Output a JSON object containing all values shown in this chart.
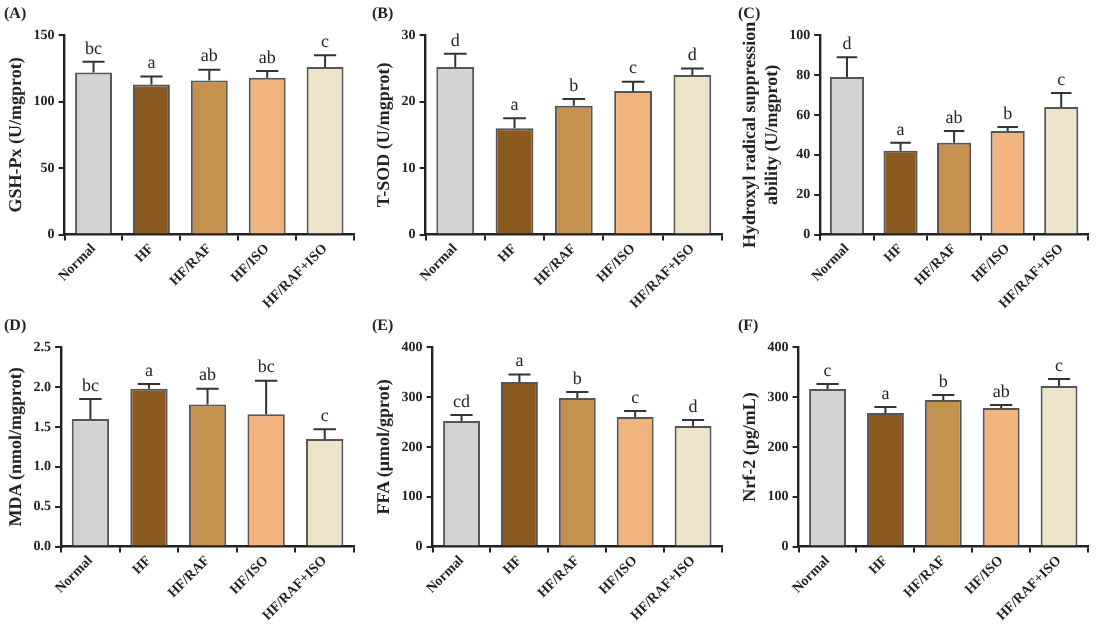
{
  "chart_data": [
    {
      "type": "bar",
      "title": "(A)",
      "ylabel": "GSH-Px (U/mgprot)",
      "categories": [
        "Normal",
        "HF",
        "HF/RAF",
        "HF/ISO",
        "HF/RAF+ISO"
      ],
      "colors": [
        "#d3d3d3",
        "#8b5a1e",
        "#c4914f",
        "#f2b47e",
        "#ede3c8"
      ],
      "values": [
        122,
        113,
        116,
        118,
        126
      ],
      "errors": [
        [
          122,
          130
        ],
        [
          113,
          119
        ],
        [
          116,
          124
        ],
        [
          118,
          123
        ],
        [
          126,
          135
        ]
      ],
      "ylim": [
        0,
        150
      ],
      "yticks": [
        0,
        50,
        100,
        150
      ],
      "grid": false,
      "legend": false,
      "annotations": [
        {
          "text": "bc",
          "x": "Normal",
          "y": 130
        },
        {
          "text": "a",
          "x": "HF",
          "y": 119
        },
        {
          "text": "ab",
          "x": "HF/RAF",
          "y": 124
        },
        {
          "text": "ab",
          "x": "HF/ISO",
          "y": 123
        },
        {
          "text": "c",
          "x": "HF/RAF+ISO",
          "y": 135
        }
      ]
    },
    {
      "type": "bar",
      "title": "(B)",
      "ylabel": "T-SOD (U/mgprot)",
      "categories": [
        "Normal",
        "HF",
        "HF/RAF",
        "HF/ISO",
        "HF/RAF+ISO"
      ],
      "colors": [
        "#d3d3d3",
        "#8b5a1e",
        "#c4914f",
        "#f2b47e",
        "#ede3c8"
      ],
      "values": [
        25.2,
        16,
        19.4,
        21.6,
        24
      ],
      "errors": [
        [
          25.2,
          27.2
        ],
        [
          16,
          17.5
        ],
        [
          19.4,
          20.4
        ],
        [
          21.6,
          23
        ],
        [
          24,
          25
        ]
      ],
      "ylim": [
        0,
        30
      ],
      "yticks": [
        0,
        10,
        20,
        30
      ],
      "grid": false,
      "legend": false,
      "annotations": [
        {
          "text": "d",
          "x": "Normal",
          "y": 27.2
        },
        {
          "text": "a",
          "x": "HF",
          "y": 17.5
        },
        {
          "text": "b",
          "x": "HF/RAF",
          "y": 20.4
        },
        {
          "text": "c",
          "x": "HF/ISO",
          "y": 23
        },
        {
          "text": "d",
          "x": "HF/RAF+ISO",
          "y": 25
        }
      ]
    },
    {
      "type": "bar",
      "title": "(C)",
      "ylabel": "Hydroxyl radical suppression ability (U/mgprot)",
      "categories": [
        "Normal",
        "HF",
        "HF/RAF",
        "HF/ISO",
        "HF/RAF+ISO"
      ],
      "colors": [
        "#d3d3d3",
        "#8b5a1e",
        "#c4914f",
        "#f2b47e",
        "#ede3c8"
      ],
      "values": [
        79,
        42,
        46,
        52,
        64
      ],
      "errors": [
        [
          79,
          89
        ],
        [
          42,
          46
        ],
        [
          46,
          52
        ],
        [
          52,
          54
        ],
        [
          64,
          71
        ]
      ],
      "ylim": [
        0,
        100
      ],
      "yticks": [
        0,
        20,
        40,
        60,
        80,
        100
      ],
      "grid": false,
      "legend": false,
      "annotations": [
        {
          "text": "d",
          "x": "Normal",
          "y": 89
        },
        {
          "text": "a",
          "x": "HF",
          "y": 46
        },
        {
          "text": "ab",
          "x": "HF/RAF",
          "y": 52
        },
        {
          "text": "b",
          "x": "HF/ISO",
          "y": 54
        },
        {
          "text": "c",
          "x": "HF/RAF+ISO",
          "y": 71
        }
      ]
    },
    {
      "type": "bar",
      "title": "(D)",
      "ylabel": "MDA (nmol/mgprot)",
      "categories": [
        "Normal",
        "HF",
        "HF/RAF",
        "HF/ISO",
        "HF/RAF+ISO"
      ],
      "colors": [
        "#d3d3d3",
        "#8b5a1e",
        "#c4914f",
        "#f2b47e",
        "#ede3c8"
      ],
      "values": [
        1.6,
        1.98,
        1.78,
        1.66,
        1.35
      ],
      "errors": [
        [
          1.6,
          1.85
        ],
        [
          1.98,
          2.04
        ],
        [
          1.78,
          1.98
        ],
        [
          1.66,
          2.08
        ],
        [
          1.35,
          1.47
        ]
      ],
      "ylim": [
        0,
        2.5
      ],
      "yticks": [
        {
          "value": 0,
          "label": "0.0"
        },
        0.5,
        {
          "value": 1,
          "label": "1.0"
        },
        1.5,
        {
          "value": 2,
          "label": "2.0"
        },
        2.5
      ],
      "grid": false,
      "legend": false,
      "annotations": [
        {
          "text": "bc",
          "x": "Normal",
          "y": 1.85
        },
        {
          "text": "a",
          "x": "HF",
          "y": 2.04
        },
        {
          "text": "ab",
          "x": "HF/RAF",
          "y": 1.98
        },
        {
          "text": "bc",
          "x": "HF/ISO",
          "y": 2.08
        },
        {
          "text": "c",
          "x": "HF/RAF+ISO",
          "y": 1.47
        }
      ]
    },
    {
      "type": "bar",
      "title": "(E)",
      "ylabel": "FFA (μmol/gprot)",
      "categories": [
        "Normal",
        "HF",
        "HF/RAF",
        "HF/ISO",
        "HF/RAF+ISO"
      ],
      "colors": [
        "#d3d3d3",
        "#8b5a1e",
        "#c4914f",
        "#f2b47e",
        "#ede3c8"
      ],
      "values": [
        252,
        330,
        298,
        260,
        242
      ],
      "errors": [
        [
          252,
          264
        ],
        [
          330,
          345
        ],
        [
          298,
          310
        ],
        [
          260,
          272
        ],
        [
          242,
          254
        ]
      ],
      "ylim": [
        0,
        400
      ],
      "yticks": [
        0,
        100,
        200,
        300,
        400
      ],
      "grid": false,
      "legend": false,
      "annotations": [
        {
          "text": "cd",
          "x": "Normal",
          "y": 264
        },
        {
          "text": "a",
          "x": "HF",
          "y": 345
        },
        {
          "text": "b",
          "x": "HF/RAF",
          "y": 310
        },
        {
          "text": "c",
          "x": "HF/ISO",
          "y": 272
        },
        {
          "text": "d",
          "x": "HF/RAF+ISO",
          "y": 254
        }
      ]
    },
    {
      "type": "bar",
      "title": "(F)",
      "ylabel": "Nrf-2 (pg/mL)",
      "categories": [
        "Normal",
        "HF",
        "HF/RAF",
        "HF/ISO",
        "HF/RAF+ISO"
      ],
      "colors": [
        "#d3d3d3",
        "#8b5a1e",
        "#c4914f",
        "#f2b47e",
        "#ede3c8"
      ],
      "values": [
        316,
        268,
        294,
        278,
        322
      ],
      "errors": [
        [
          316,
          326
        ],
        [
          268,
          280
        ],
        [
          294,
          304
        ],
        [
          278,
          284
        ],
        [
          322,
          336
        ]
      ],
      "ylim": [
        0,
        400
      ],
      "yticks": [
        0,
        100,
        200,
        300,
        400
      ],
      "grid": false,
      "legend": false,
      "annotations": [
        {
          "text": "c",
          "x": "Normal",
          "y": 326
        },
        {
          "text": "a",
          "x": "HF",
          "y": 280
        },
        {
          "text": "b",
          "x": "HF/RAF",
          "y": 304
        },
        {
          "text": "ab",
          "x": "HF/ISO",
          "y": 284
        },
        {
          "text": "c",
          "x": "HF/RAF+ISO",
          "y": 336
        }
      ]
    }
  ]
}
